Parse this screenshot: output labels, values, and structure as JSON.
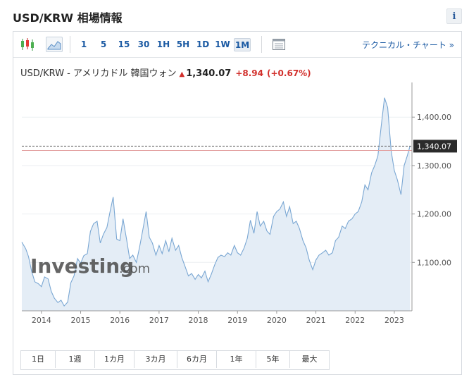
{
  "page": {
    "title": "USD/KRW 相場情報",
    "info_label": "i"
  },
  "toolbar": {
    "intervals": [
      "1",
      "5",
      "15",
      "30",
      "1H",
      "5H",
      "1D",
      "1W",
      "1M"
    ],
    "active_interval": "1M",
    "tech_chart_link": "テクニカル・チャート »",
    "icons": [
      "candlestick-icon",
      "area-chart-icon",
      "table-icon"
    ]
  },
  "quote": {
    "name": "USD/KRW - アメリカドル 韓国ウォン",
    "arrow": "▲",
    "price": "1,340.07",
    "change": "+8.94",
    "change_pct": "(+0.67%)"
  },
  "colors": {
    "line": "#7aa7d3",
    "fill": "#e4edf6",
    "up": "#d2302c",
    "link": "#1b5aa3"
  },
  "watermark": {
    "brand": "Investing",
    "suffix": ".com"
  },
  "range_buttons": [
    "1日",
    "1週",
    "1カ月",
    "3カ月",
    "6カ月",
    "1年",
    "5年",
    "最大"
  ],
  "chart_data": {
    "type": "area",
    "x_ticks": [
      "2014",
      "2015",
      "2016",
      "2017",
      "2018",
      "2019",
      "2020",
      "2021",
      "2022",
      "2023"
    ],
    "y_ticks": [
      1100,
      1200,
      1300,
      1400
    ],
    "y_tick_labels": [
      "1,100.00",
      "1,200.00",
      "1,300.00",
      "1,400.00"
    ],
    "ylim": [
      1000,
      1460
    ],
    "xlim": [
      2013.5,
      2023.45
    ],
    "current_price": 1340.07,
    "current_label": "1,340.07",
    "reference_price": 1331.13,
    "series": [
      {
        "x": [
          2013.5,
          2013.6,
          2013.67,
          2013.75,
          2013.83,
          2013.92,
          2014.0,
          2014.08,
          2014.17,
          2014.25,
          2014.33,
          2014.42,
          2014.5,
          2014.58,
          2014.67,
          2014.75,
          2014.83,
          2014.92,
          2015.0,
          2015.08,
          2015.17,
          2015.25,
          2015.33,
          2015.42,
          2015.5,
          2015.58,
          2015.67,
          2015.75,
          2015.83,
          2015.92,
          2016.0,
          2016.08,
          2016.17,
          2016.25,
          2016.33,
          2016.42,
          2016.5,
          2016.58,
          2016.67,
          2016.75,
          2016.83,
          2016.92,
          2017.0,
          2017.08,
          2017.17,
          2017.25,
          2017.33,
          2017.42,
          2017.5,
          2017.58,
          2017.67,
          2017.75,
          2017.83,
          2017.92,
          2018.0,
          2018.08,
          2018.17,
          2018.25,
          2018.33,
          2018.42,
          2018.5,
          2018.58,
          2018.67,
          2018.75,
          2018.83,
          2018.92,
          2019.0,
          2019.08,
          2019.17,
          2019.25,
          2019.33,
          2019.42,
          2019.5,
          2019.58,
          2019.67,
          2019.75,
          2019.83,
          2019.92,
          2020.0,
          2020.08,
          2020.17,
          2020.25,
          2020.33,
          2020.42,
          2020.5,
          2020.58,
          2020.67,
          2020.75,
          2020.83,
          2020.92,
          2021.0,
          2021.08,
          2021.17,
          2021.25,
          2021.33,
          2021.42,
          2021.5,
          2021.58,
          2021.67,
          2021.75,
          2021.83,
          2021.92,
          2022.0,
          2022.08,
          2022.17,
          2022.25,
          2022.33,
          2022.42,
          2022.5,
          2022.58,
          2022.67,
          2022.75,
          2022.83,
          2022.92,
          2023.0,
          2023.08,
          2023.17,
          2023.25,
          2023.33,
          2023.4
        ],
        "y": [
          1142,
          1128,
          1112,
          1082,
          1060,
          1056,
          1050,
          1070,
          1066,
          1040,
          1026,
          1017,
          1022,
          1010,
          1018,
          1058,
          1072,
          1108,
          1098,
          1114,
          1118,
          1164,
          1180,
          1185,
          1140,
          1158,
          1172,
          1205,
          1235,
          1148,
          1145,
          1190,
          1148,
          1108,
          1115,
          1100,
          1130,
          1165,
          1205,
          1152,
          1140,
          1115,
          1135,
          1118,
          1145,
          1122,
          1150,
          1125,
          1135,
          1110,
          1090,
          1072,
          1077,
          1065,
          1075,
          1068,
          1082,
          1060,
          1075,
          1095,
          1110,
          1115,
          1112,
          1120,
          1115,
          1135,
          1120,
          1115,
          1130,
          1150,
          1187,
          1160,
          1205,
          1175,
          1185,
          1165,
          1158,
          1195,
          1205,
          1210,
          1225,
          1195,
          1215,
          1180,
          1185,
          1170,
          1145,
          1130,
          1105,
          1085,
          1105,
          1115,
          1120,
          1125,
          1115,
          1120,
          1145,
          1152,
          1175,
          1170,
          1185,
          1190,
          1200,
          1205,
          1225,
          1260,
          1250,
          1285,
          1300,
          1320,
          1385,
          1440,
          1420,
          1330,
          1290,
          1270,
          1240,
          1300,
          1320,
          1340
        ]
      }
    ]
  }
}
